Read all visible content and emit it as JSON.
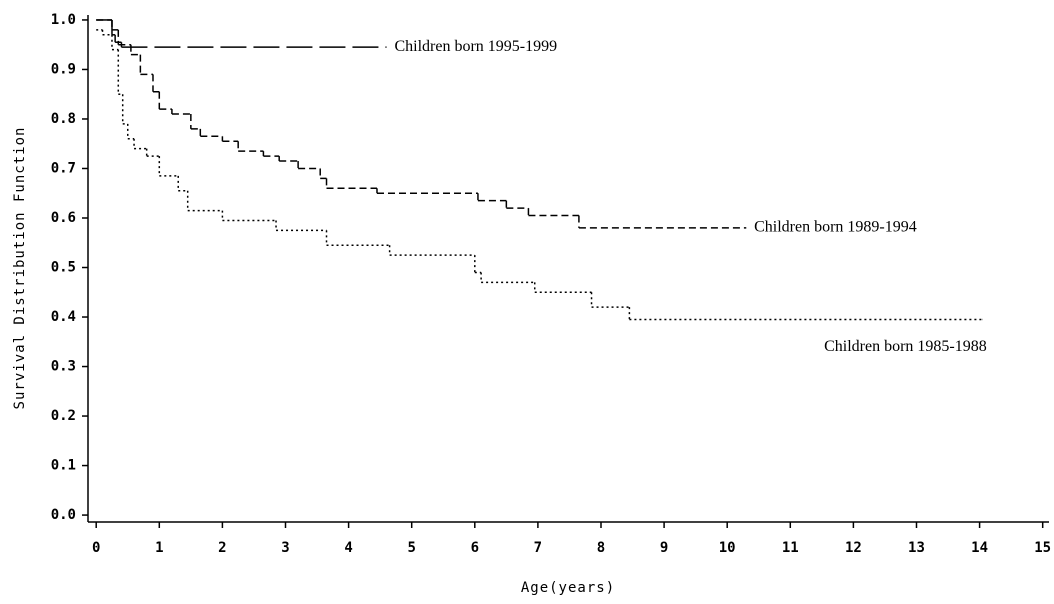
{
  "chart_data": {
    "type": "step",
    "x_label": "Age(years)",
    "y_label": "Survival Distribution Function",
    "xlim": [
      -0.13,
      15.1
    ],
    "ylim": [
      -0.014,
      1.01
    ],
    "xticks": [
      0,
      1,
      2,
      3,
      4,
      5,
      6,
      7,
      8,
      9,
      10,
      11,
      12,
      13,
      14,
      15
    ],
    "yticks": [
      {
        "value": 0,
        "label": "0.0"
      },
      0.1,
      0.2,
      0.3,
      0.4,
      0.5,
      0.6,
      0.7,
      0.8,
      0.9,
      {
        "value": 1,
        "label": "1.0"
      }
    ],
    "series": [
      {
        "name": "Children born 1995-1999",
        "color": "#000000",
        "style": "long-dash",
        "x": [
          0,
          0.25,
          0.3,
          0.4,
          4.6
        ],
        "values": [
          1.0,
          0.97,
          0.955,
          0.945,
          0.945
        ]
      },
      {
        "name": "Children born 1989-1994",
        "color": "#000000",
        "style": "short-dash",
        "x": [
          0,
          0.25,
          0.35,
          0.55,
          0.7,
          0.9,
          1.0,
          1.2,
          1.5,
          1.65,
          2.0,
          2.25,
          2.65,
          2.9,
          3.2,
          3.55,
          3.65,
          4.45,
          6.05,
          6.5,
          6.85,
          7.65,
          10.3
        ],
        "values": [
          1.0,
          0.98,
          0.95,
          0.93,
          0.89,
          0.855,
          0.82,
          0.81,
          0.78,
          0.765,
          0.755,
          0.735,
          0.725,
          0.715,
          0.7,
          0.68,
          0.66,
          0.65,
          0.635,
          0.62,
          0.605,
          0.58,
          0.58
        ]
      },
      {
        "name": "Children born 1985-1988",
        "color": "#000000",
        "style": "dotted",
        "x": [
          0,
          0.1,
          0.25,
          0.35,
          0.42,
          0.5,
          0.6,
          0.8,
          1.0,
          1.3,
          1.45,
          2.0,
          2.85,
          3.65,
          4.65,
          6.0,
          6.1,
          6.95,
          7.85,
          8.45,
          14.05
        ],
        "values": [
          0.98,
          0.97,
          0.94,
          0.85,
          0.79,
          0.76,
          0.74,
          0.725,
          0.685,
          0.655,
          0.615,
          0.595,
          0.575,
          0.545,
          0.525,
          0.49,
          0.47,
          0.45,
          0.42,
          0.395,
          0.395
        ]
      }
    ]
  }
}
